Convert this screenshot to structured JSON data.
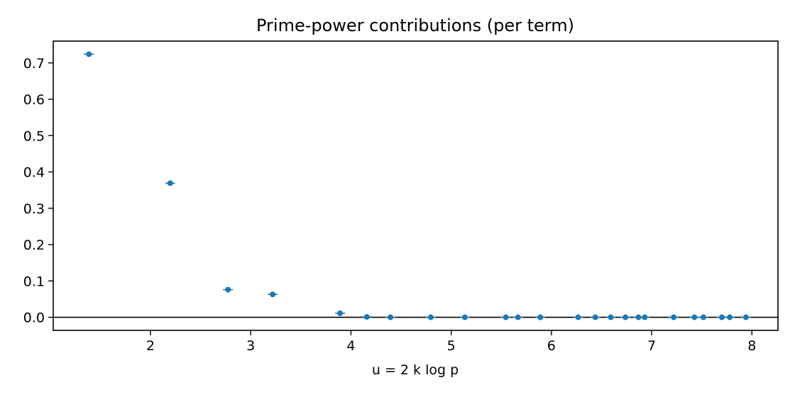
{
  "chart_data": {
    "type": "scatter",
    "title": "Prime-power contributions (per term)",
    "xlabel": "u = 2 k log p",
    "ylabel": "",
    "xlim": [
      1.03,
      8.26
    ],
    "ylim": [
      -0.036,
      0.76
    ],
    "xticks": [
      "2",
      "3",
      "4",
      "5",
      "6",
      "7",
      "8"
    ],
    "yticks": [
      "0.0",
      "0.1",
      "0.2",
      "0.3",
      "0.4",
      "0.5",
      "0.6",
      "0.7"
    ],
    "grid": false,
    "zero_line": true,
    "color": "#1f77b4",
    "points": [
      {
        "x": 1.386,
        "y": 0.724
      },
      {
        "x": 2.197,
        "y": 0.369
      },
      {
        "x": 2.773,
        "y": 0.076
      },
      {
        "x": 3.219,
        "y": 0.063
      },
      {
        "x": 3.892,
        "y": 0.011
      },
      {
        "x": 4.159,
        "y": 0.001
      },
      {
        "x": 4.394,
        "y": 0.0
      },
      {
        "x": 4.796,
        "y": 0.0
      },
      {
        "x": 5.136,
        "y": 0.0
      },
      {
        "x": 5.545,
        "y": 0.0
      },
      {
        "x": 5.666,
        "y": 0.0
      },
      {
        "x": 5.889,
        "y": 0.0
      },
      {
        "x": 6.267,
        "y": 0.0
      },
      {
        "x": 6.438,
        "y": 0.0
      },
      {
        "x": 6.592,
        "y": 0.0
      },
      {
        "x": 6.738,
        "y": 0.0
      },
      {
        "x": 6.868,
        "y": 0.0
      },
      {
        "x": 6.931,
        "y": 0.0
      },
      {
        "x": 7.22,
        "y": 0.0
      },
      {
        "x": 7.426,
        "y": 0.0
      },
      {
        "x": 7.516,
        "y": 0.0
      },
      {
        "x": 7.7,
        "y": 0.0
      },
      {
        "x": 7.779,
        "y": 0.0
      },
      {
        "x": 7.941,
        "y": 0.0
      }
    ]
  }
}
